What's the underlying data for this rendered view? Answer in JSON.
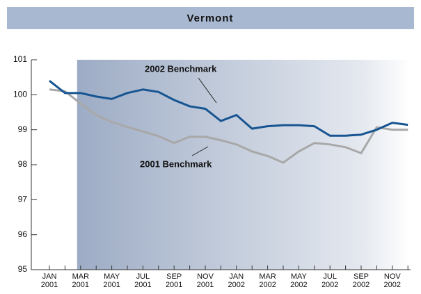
{
  "chart_data": {
    "type": "line",
    "title": "Vermont",
    "categories": [
      "JAN 2001",
      null,
      "MAR 2001",
      null,
      "MAY 2001",
      null,
      "JUL 2001",
      null,
      "SEP 2001",
      null,
      "NOV 2001",
      null,
      "JAN 2002",
      null,
      "MAR 2002",
      null,
      "MAY 2002",
      null,
      "JUL 2002",
      null,
      "SEP 2002",
      null,
      "NOV 2002",
      null
    ],
    "series": [
      {
        "name": "2002 Benchmark",
        "color": "#175592",
        "values": [
          100.4,
          100.05,
          100.05,
          99.95,
          99.88,
          100.05,
          100.15,
          100.08,
          99.85,
          99.67,
          99.6,
          99.25,
          99.42,
          99.03,
          99.1,
          99.13,
          99.13,
          99.1,
          98.83,
          98.83,
          98.86,
          99.0,
          99.2,
          99.14
        ]
      },
      {
        "name": "2001 Benchmark",
        "color": "#a8a8a8",
        "values": [
          100.15,
          100.1,
          99.75,
          99.42,
          99.22,
          99.08,
          98.95,
          98.82,
          98.62,
          98.8,
          98.8,
          98.7,
          98.58,
          98.38,
          98.25,
          98.06,
          98.38,
          98.62,
          98.58,
          98.5,
          98.33,
          99.07,
          99.0,
          99.0
        ]
      }
    ],
    "ylim": [
      95,
      101
    ],
    "yticks": [
      95,
      96,
      97,
      98,
      99,
      100,
      101
    ]
  }
}
